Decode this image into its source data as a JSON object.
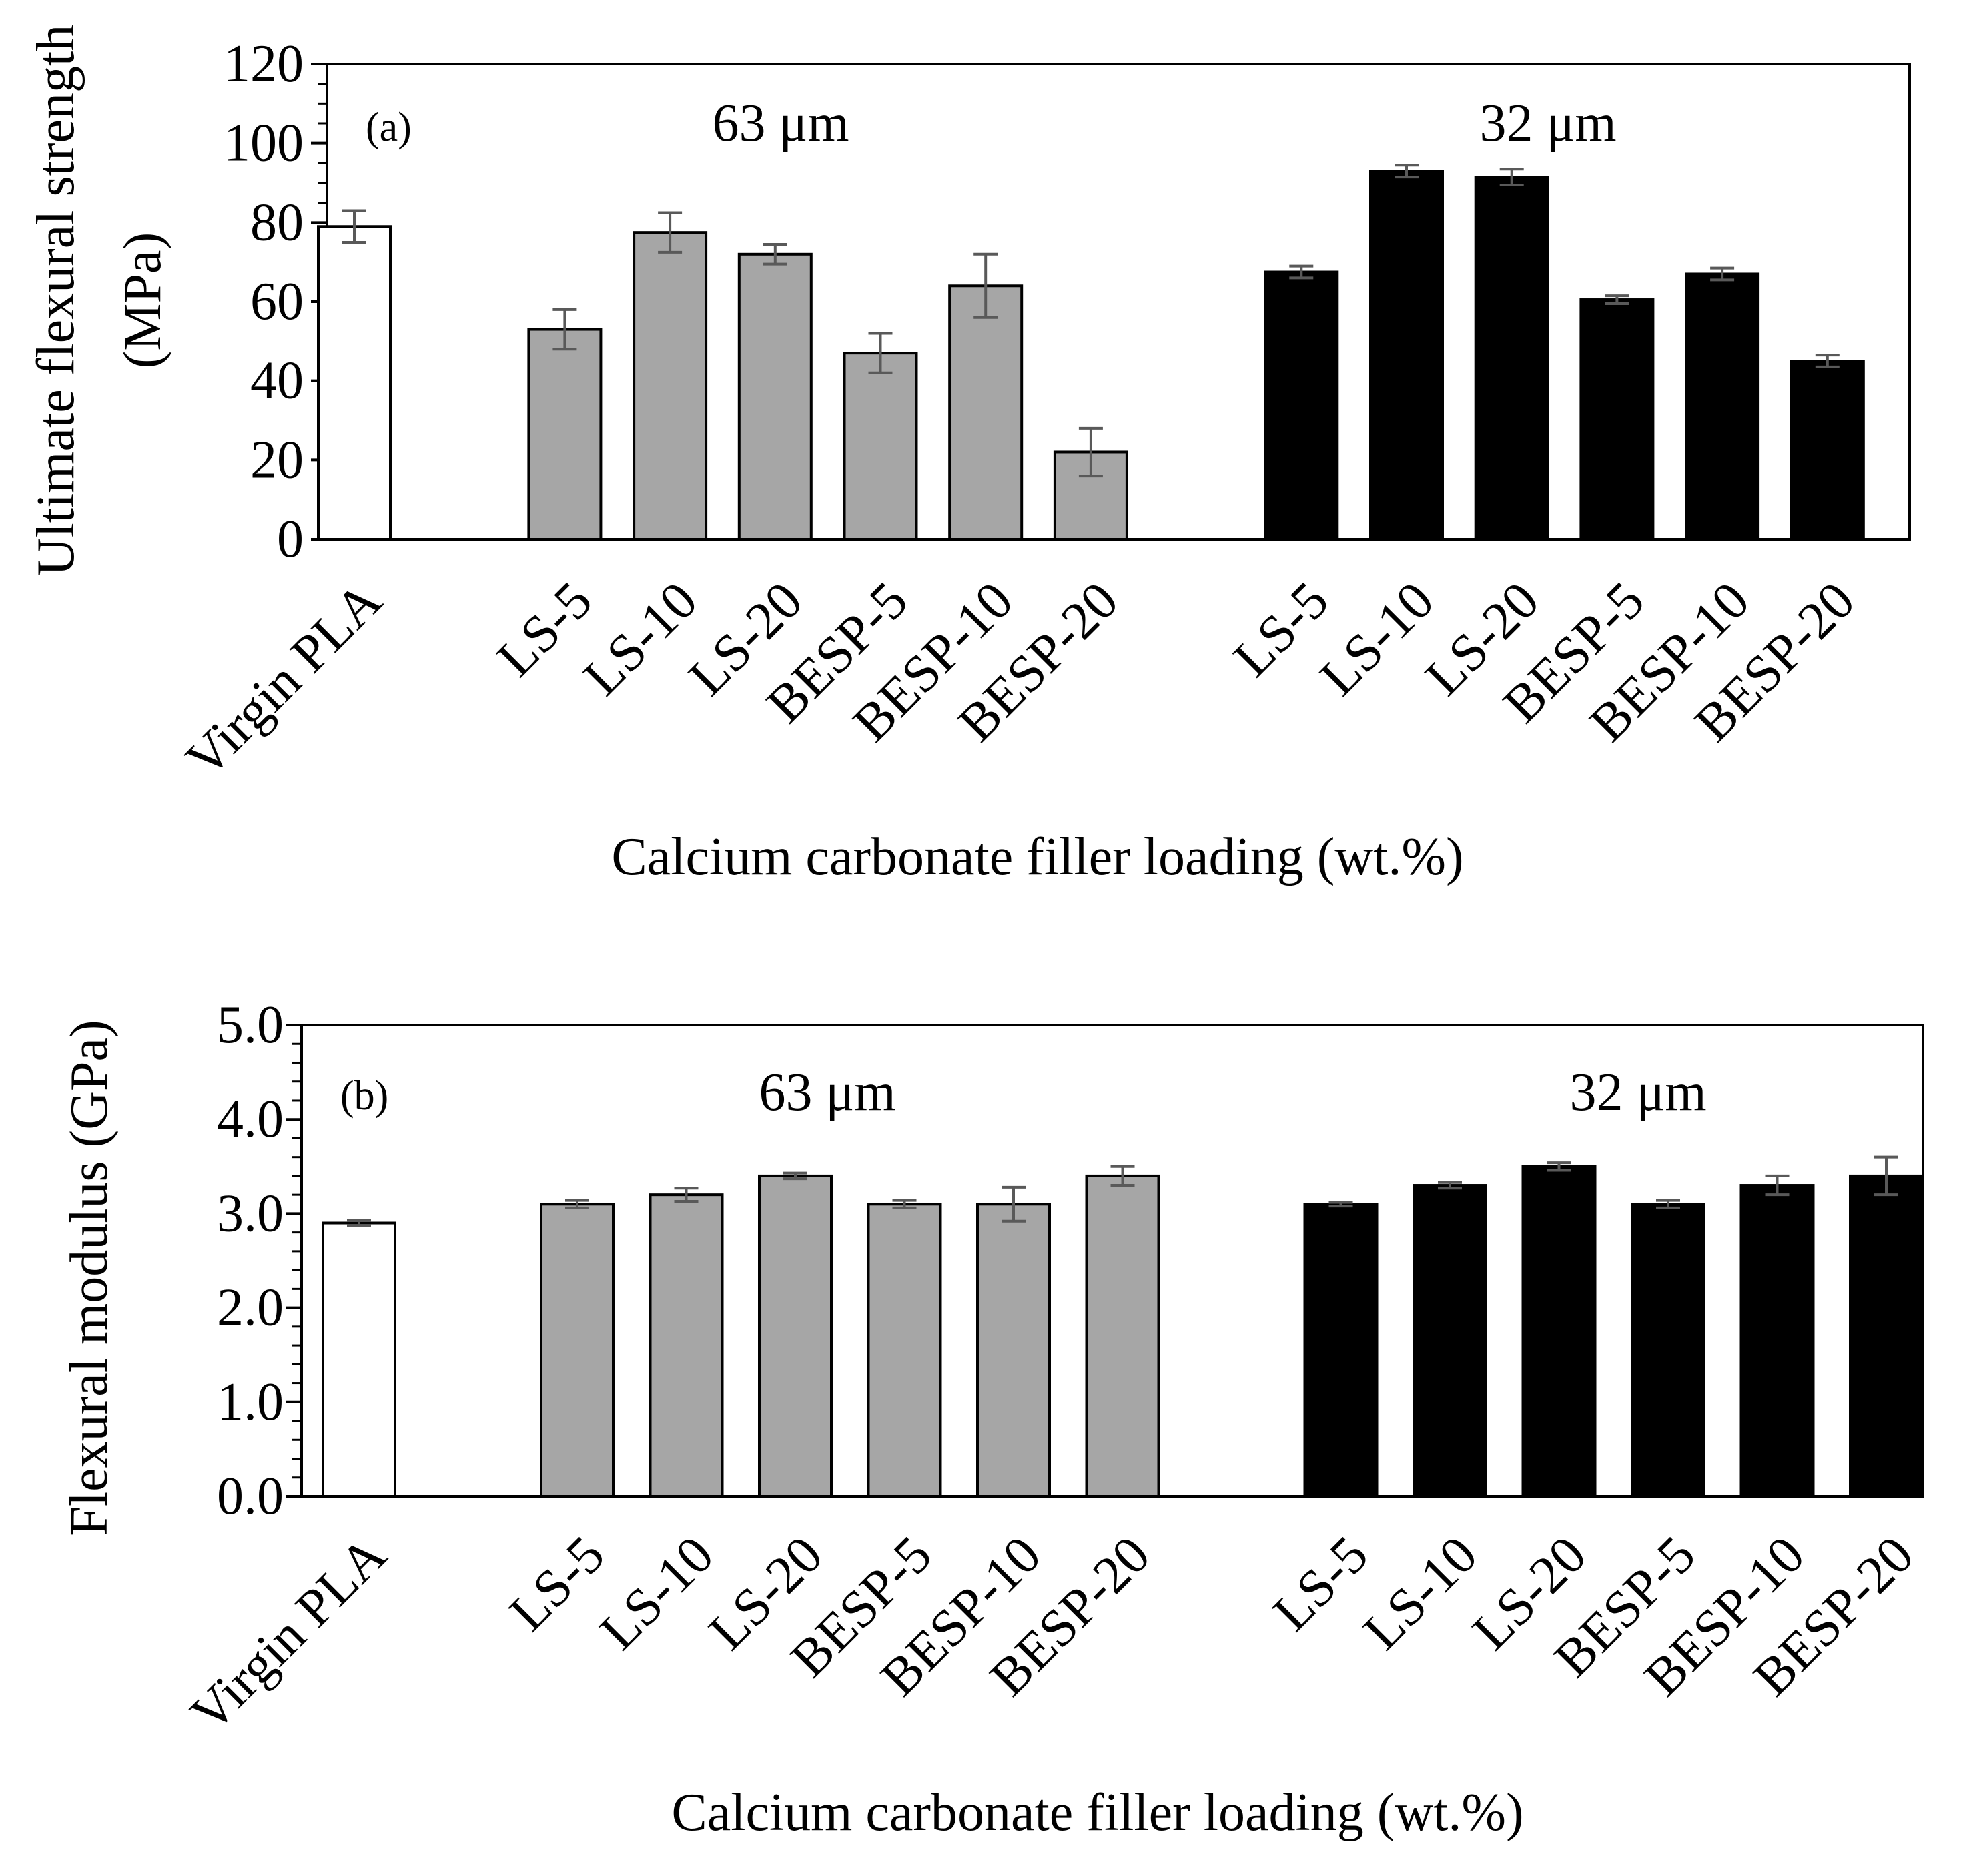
{
  "colors": {
    "virgin": "#ffffff",
    "um63": "#a6a6a6",
    "um32": "#000000",
    "error_bar": "#595959",
    "axis": "#000000"
  },
  "chart_data": [
    {
      "type": "bar",
      "panel_label": "(a)",
      "ylabel_line1": "Ultimate flexural strength",
      "ylabel_line2": "(MPa)",
      "xlabel": "Calcium carbonate filler loading (wt.%)",
      "ylim": [
        0,
        120
      ],
      "yticks": [
        0,
        20,
        40,
        60,
        80,
        100,
        120
      ],
      "ytick_labels": [
        "0",
        "20",
        "40",
        "60",
        "80",
        "100",
        "120"
      ],
      "group_labels": [
        {
          "text": "63 μm",
          "slot": 4.5
        },
        {
          "text": "32 μm",
          "slot": 11.5
        }
      ],
      "bars": [
        {
          "category": "Virgin PLA",
          "slot": 0,
          "value": 79,
          "error": 4,
          "group": "virgin"
        },
        {
          "category": "LS-5",
          "slot": 2,
          "value": 53,
          "error": 5,
          "group": "um63"
        },
        {
          "category": "LS-10",
          "slot": 3,
          "value": 77.5,
          "error": 5,
          "group": "um63"
        },
        {
          "category": "LS-20",
          "slot": 4,
          "value": 72,
          "error": 2.5,
          "group": "um63"
        },
        {
          "category": "BESP-5",
          "slot": 5,
          "value": 47,
          "error": 5,
          "group": "um63"
        },
        {
          "category": "BESP-10",
          "slot": 6,
          "value": 64,
          "error": 8,
          "group": "um63"
        },
        {
          "category": "BESP-20",
          "slot": 7,
          "value": 22,
          "error": 6,
          "group": "um63"
        },
        {
          "category": "LS-5",
          "slot": 9,
          "value": 67.5,
          "error": 1.5,
          "group": "um32"
        },
        {
          "category": "LS-10",
          "slot": 10,
          "value": 93,
          "error": 1.5,
          "group": "um32"
        },
        {
          "category": "LS-20",
          "slot": 11,
          "value": 91.5,
          "error": 2,
          "group": "um32"
        },
        {
          "category": "BESP-5",
          "slot": 12,
          "value": 60.5,
          "error": 1,
          "group": "um32"
        },
        {
          "category": "BESP-10",
          "slot": 13,
          "value": 67,
          "error": 1.5,
          "group": "um32"
        },
        {
          "category": "BESP-20",
          "slot": 14,
          "value": 45,
          "error": 1.5,
          "group": "um32"
        }
      ]
    },
    {
      "type": "bar",
      "panel_label": "(b)",
      "ylabel_line1": "Flexural modulus (GPa)",
      "ylabel_line2": "",
      "xlabel": "Calcium carbonate filler loading (wt.%)",
      "ylim": [
        0,
        5
      ],
      "yticks": [
        0,
        1,
        2,
        3,
        4,
        5
      ],
      "ytick_labels": [
        "0.0",
        "1.0",
        "2.0",
        "3.0",
        "4.0",
        "5.0"
      ],
      "group_labels": [
        {
          "text": "63 μm",
          "slot": 4.5
        },
        {
          "text": "32 μm",
          "slot": 11.5
        }
      ],
      "bars": [
        {
          "category": "Virgin PLA",
          "slot": 0,
          "value": 2.9,
          "error": 0.03,
          "group": "virgin"
        },
        {
          "category": "LS-5",
          "slot": 2,
          "value": 3.1,
          "error": 0.04,
          "group": "um63"
        },
        {
          "category": "LS-10",
          "slot": 3,
          "value": 3.2,
          "error": 0.07,
          "group": "um63"
        },
        {
          "category": "LS-20",
          "slot": 4,
          "value": 3.4,
          "error": 0.03,
          "group": "um63"
        },
        {
          "category": "BESP-5",
          "slot": 5,
          "value": 3.1,
          "error": 0.04,
          "group": "um63"
        },
        {
          "category": "BESP-10",
          "slot": 6,
          "value": 3.1,
          "error": 0.18,
          "group": "um63"
        },
        {
          "category": "BESP-20",
          "slot": 7,
          "value": 3.4,
          "error": 0.1,
          "group": "um63"
        },
        {
          "category": "LS-5",
          "slot": 9,
          "value": 3.1,
          "error": 0.02,
          "group": "um32"
        },
        {
          "category": "LS-10",
          "slot": 10,
          "value": 3.3,
          "error": 0.03,
          "group": "um32"
        },
        {
          "category": "LS-20",
          "slot": 11,
          "value": 3.5,
          "error": 0.04,
          "group": "um32"
        },
        {
          "category": "BESP-5",
          "slot": 12,
          "value": 3.1,
          "error": 0.04,
          "group": "um32"
        },
        {
          "category": "BESP-10",
          "slot": 13,
          "value": 3.3,
          "error": 0.1,
          "group": "um32"
        },
        {
          "category": "BESP-20",
          "slot": 14,
          "value": 3.4,
          "error": 0.2,
          "group": "um32"
        }
      ]
    }
  ]
}
